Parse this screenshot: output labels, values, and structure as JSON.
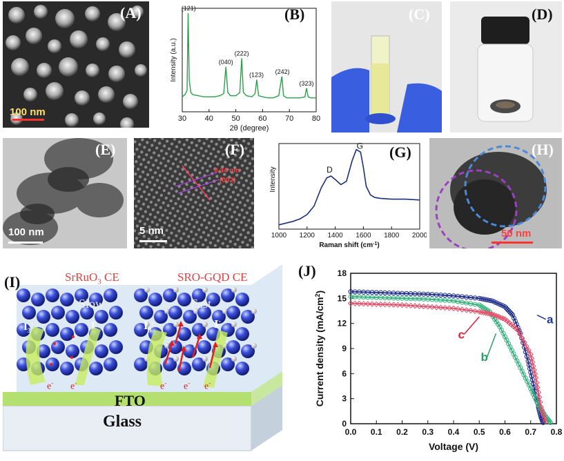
{
  "panels": {
    "A": {
      "label": "(A)",
      "scale": "100 nm"
    },
    "B": {
      "label": "(B)"
    },
    "C": {
      "label": "(C)"
    },
    "D": {
      "label": "(D)"
    },
    "E": {
      "label": "(E)",
      "scale": "100 nm"
    },
    "F": {
      "label": "(F)",
      "scale": "5 nm",
      "annotation_spacing": "0.34 nm",
      "annotation_plane": "(002)"
    },
    "G": {
      "label": "(G)"
    },
    "H": {
      "label": "(H)",
      "scale": "50 nm"
    },
    "I": {
      "label": "(I)",
      "left_title": "SrRuO",
      "left_sub": "3",
      "left_suffix": " CE",
      "right_title": "SRO-GQD CE",
      "slow": "Slow",
      "fast": "Fast",
      "i3": "I",
      "i3_sub": "3",
      "i3_sup": "-",
      "i_minus": "I",
      "i_minus_sup": "-",
      "electron": "e",
      "electron_sup": "-",
      "fto": "FTO",
      "glass": "Glass"
    },
    "J": {
      "label": "(J)"
    }
  },
  "colors": {
    "xrd_line": "#2aa04a",
    "raman_line": "#1a2f7a",
    "curve_a": "#1b2a8a",
    "curve_b": "#2fb07a",
    "curve_c": "#e0506a",
    "label_a": "#1b3aa0",
    "label_b": "#2aa060",
    "label_c": "#e02030"
  },
  "chart_data": [
    {
      "panel": "B",
      "type": "line",
      "xlabel": "2θ (degree)",
      "ylabel": "Intensity (a.u.)",
      "xlim": [
        30,
        80
      ],
      "xticks": [
        30,
        40,
        50,
        60,
        70,
        80
      ],
      "x": [
        30,
        31,
        31.8,
        32.2,
        32.6,
        33.2,
        34,
        36,
        38,
        40,
        42,
        44,
        45.5,
        46.3,
        47,
        48,
        50,
        51.5,
        52.2,
        52.8,
        54,
        56,
        57.2,
        57.8,
        58.5,
        60,
        62,
        64,
        66,
        67.2,
        67.8,
        69,
        72,
        74,
        75.8,
        76.4,
        77,
        78,
        80
      ],
      "values": [
        14,
        16,
        20,
        92,
        30,
        18,
        16,
        15,
        14,
        14,
        14,
        15,
        17,
        42,
        18,
        15,
        15,
        18,
        50,
        18,
        15,
        14,
        17,
        30,
        15,
        14,
        13,
        13,
        15,
        33,
        15,
        13,
        13,
        13,
        14,
        22,
        14,
        13,
        13
      ],
      "peaks": [
        {
          "x": 32.4,
          "label": "(121)"
        },
        {
          "x": 46.3,
          "label": "(040)"
        },
        {
          "x": 52.2,
          "label": "(222)"
        },
        {
          "x": 57.7,
          "label": "(123)"
        },
        {
          "x": 67.4,
          "label": "(242)"
        },
        {
          "x": 76.4,
          "label": "(323)"
        }
      ]
    },
    {
      "panel": "G",
      "type": "line",
      "xlabel": "Raman shift (cm",
      "xlabel_sup": "-1",
      "xlabel_end": ")",
      "ylabel": "Intensity",
      "xlim": [
        1000,
        2000
      ],
      "xticks": [
        1000,
        1200,
        1400,
        1600,
        1800,
        2000
      ],
      "x": [
        1000,
        1050,
        1100,
        1150,
        1200,
        1250,
        1300,
        1340,
        1370,
        1400,
        1440,
        1480,
        1520,
        1550,
        1580,
        1600,
        1620,
        1650,
        1680,
        1720,
        1800,
        1900,
        2000
      ],
      "values": [
        5,
        7,
        9,
        12,
        17,
        27,
        48,
        60,
        62,
        58,
        52,
        56,
        80,
        93,
        90,
        72,
        50,
        40,
        37,
        36,
        35,
        35,
        34
      ],
      "peak_labels": [
        {
          "x": 1360,
          "label": "D"
        },
        {
          "x": 1575,
          "label": "G"
        }
      ]
    },
    {
      "panel": "J",
      "type": "line",
      "xlabel": "Voltage (V)",
      "ylabel": "Current density (mA/cm",
      "ylabel_sup": "2",
      "ylabel_end": ")",
      "xlim": [
        0.0,
        0.8
      ],
      "ylim": [
        0,
        18
      ],
      "xticks": [
        0.0,
        0.1,
        0.2,
        0.3,
        0.4,
        0.5,
        0.6,
        0.7,
        0.8
      ],
      "yticks": [
        0,
        3,
        6,
        9,
        12,
        15,
        18
      ],
      "series": [
        {
          "name": "a",
          "x": [
            0,
            0.1,
            0.2,
            0.3,
            0.4,
            0.5,
            0.55,
            0.6,
            0.63,
            0.66,
            0.69,
            0.71,
            0.73,
            0.74,
            0.75
          ],
          "values": [
            15.8,
            15.7,
            15.6,
            15.5,
            15.3,
            15.0,
            14.7,
            14.0,
            13.0,
            10.8,
            7.5,
            4.8,
            2.0,
            0.8,
            0
          ]
        },
        {
          "name": "b",
          "x": [
            0,
            0.1,
            0.2,
            0.3,
            0.4,
            0.5,
            0.54,
            0.58,
            0.62,
            0.66,
            0.7,
            0.73,
            0.76,
            0.78
          ],
          "values": [
            15.2,
            15.1,
            15.0,
            14.9,
            14.7,
            14.2,
            13.4,
            11.6,
            9.2,
            6.7,
            4.2,
            2.2,
            0.8,
            0
          ]
        },
        {
          "name": "c",
          "x": [
            0,
            0.1,
            0.2,
            0.3,
            0.4,
            0.5,
            0.55,
            0.6,
            0.65,
            0.7,
            0.72,
            0.74,
            0.76
          ],
          "values": [
            14.4,
            14.3,
            14.2,
            14.0,
            13.8,
            13.4,
            13.1,
            12.5,
            11.2,
            8.3,
            5.5,
            2.0,
            0
          ]
        }
      ]
    }
  ]
}
